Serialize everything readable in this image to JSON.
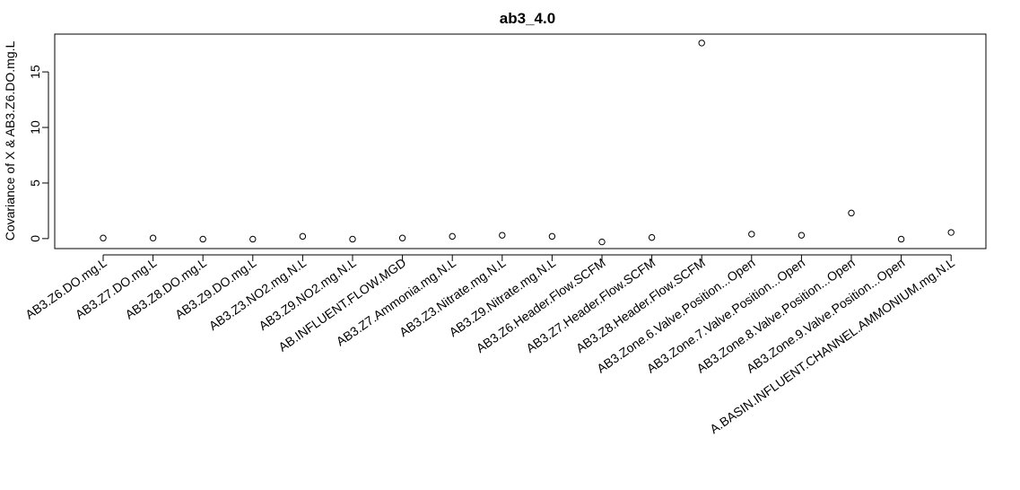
{
  "chart_data": {
    "type": "scatter",
    "title": "ab3_4.0",
    "xlabel": "",
    "ylabel": "Covariance of X & AB3.Z6.DO.mg.L",
    "ylim": [
      -0.9,
      18.4
    ],
    "yticks": [
      0,
      5,
      10,
      15
    ],
    "grid": false,
    "categories": [
      "AB3.Z6.DO.mg.L",
      "AB3.Z7.DO.mg.L",
      "AB3.Z8.DO.mg.L",
      "AB3.Z9.DO.mg.L",
      "AB3.Z3.NO2.mg.N.L",
      "AB3.Z9.NO2.mg.N.L",
      "AB.INFLUENT.FLOW.MGD",
      "AB3.Z7.Ammonia.mg.N.L",
      "AB3.Z3.Nitrate.mg.N.L",
      "AB3.Z9.Nitrate.mg.N.L",
      "AB3.Z6.Header.Flow.SCFM",
      "AB3.Z7.Header.Flow.SCFM",
      "AB3.Z8.Header.Flow.SCFM",
      "AB3.Zone.6.Valve.Position...Open",
      "AB3.Zone.7.Valve.Position...Open",
      "AB3.Zone.8.Valve.Position...Open",
      "AB3.Zone.9.Valve.Position...Open",
      "A.BASIN.INFLUENT.CHANNEL.AMMONIUM.mg.N.L"
    ],
    "values": [
      0.05,
      0.05,
      -0.05,
      -0.05,
      0.2,
      -0.05,
      0.05,
      0.2,
      0.3,
      0.2,
      -0.3,
      0.1,
      17.6,
      0.4,
      0.3,
      2.3,
      -0.05,
      0.55
    ]
  }
}
